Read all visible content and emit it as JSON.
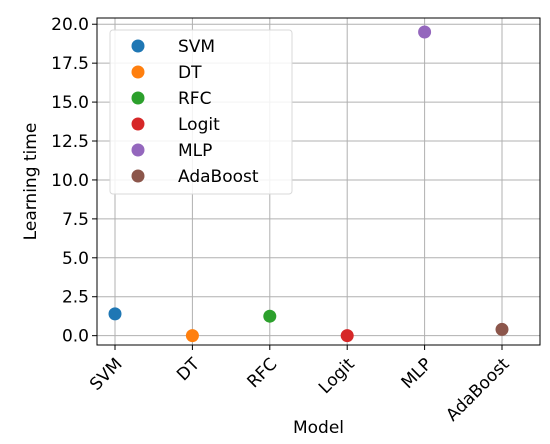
{
  "chart_data": {
    "type": "scatter",
    "title": "",
    "xlabel": "Model",
    "ylabel": "Learning time",
    "categories": [
      "SVM",
      "DT",
      "RFC",
      "Logit",
      "MLP",
      "AdaBoost"
    ],
    "ylim": [
      -0.6,
      20.4
    ],
    "yticks": [
      "0.0",
      "2.5",
      "5.0",
      "7.5",
      "10.0",
      "12.5",
      "15.0",
      "17.5",
      "20.0"
    ],
    "grid": true,
    "legend_position": "top-left",
    "series": [
      {
        "name": "SVM",
        "category": "SVM",
        "value": 1.4,
        "color": "#1f77b4"
      },
      {
        "name": "DT",
        "category": "DT",
        "value": 0.0,
        "color": "#ff7f0e"
      },
      {
        "name": "RFC",
        "category": "RFC",
        "value": 1.25,
        "color": "#2ca02c"
      },
      {
        "name": "Logit",
        "category": "Logit",
        "value": 0.0,
        "color": "#d62728"
      },
      {
        "name": "MLP",
        "category": "MLP",
        "value": 19.5,
        "color": "#9467bd"
      },
      {
        "name": "AdaBoost",
        "category": "AdaBoost",
        "value": 0.4,
        "color": "#8c564b"
      }
    ]
  }
}
